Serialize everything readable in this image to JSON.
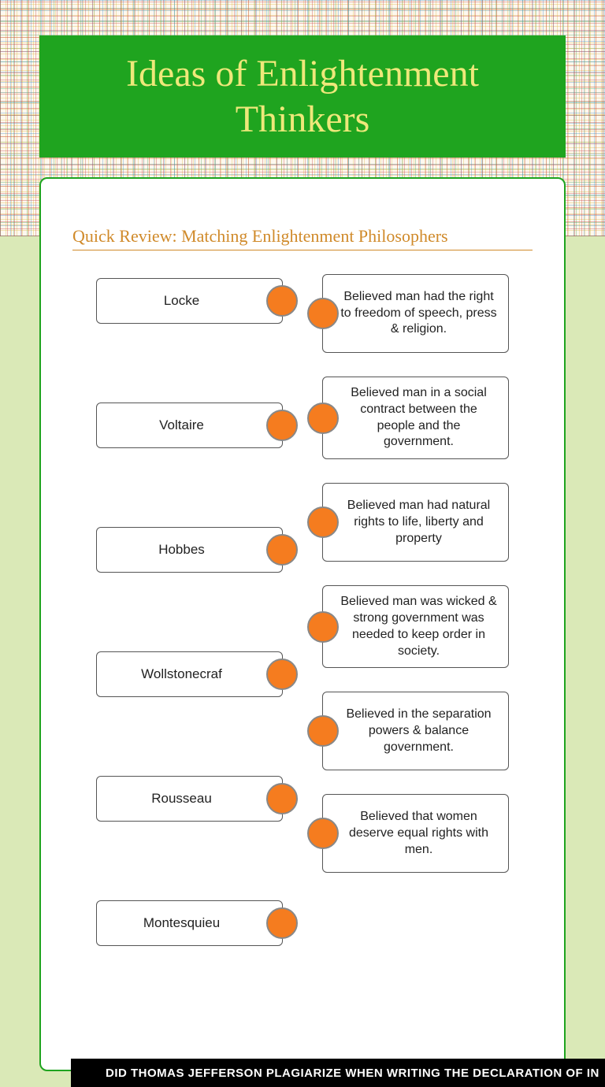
{
  "title": "Ideas of Enlightenment Thinkers",
  "subtitle": "Quick Review: Matching Enlightenment Philosophers",
  "colors": {
    "banner_bg": "#1fa41f",
    "banner_text": "#eee87a",
    "subtitle_color": "#d08a2a",
    "lower_bg": "#dae9b7",
    "dot_fill": "#f57c1f",
    "dot_border": "#888888",
    "box_border": "#555555",
    "card_border": "#1fa41f",
    "footer_bg": "#000000",
    "footer_text": "#ffffff"
  },
  "names": [
    "Locke",
    "Voltaire",
    "Hobbes",
    "Wollstonecraf",
    "Rousseau",
    "Montesquieu"
  ],
  "descriptions": [
    "Believed man had the right to freedom of speech, press & religion.",
    "Believed man in a social contract between the people and the government.",
    "Believed man had natural rights to life, liberty and property",
    "Believed man was wicked & strong government was needed to keep order in society.",
    "Believed in the separation powers & balance government.",
    "Believed that women deserve equal rights with men."
  ],
  "footer": "DID THOMAS JEFFERSON PLAGIARIZE WHEN WRITING THE DECLARATION OF IN"
}
